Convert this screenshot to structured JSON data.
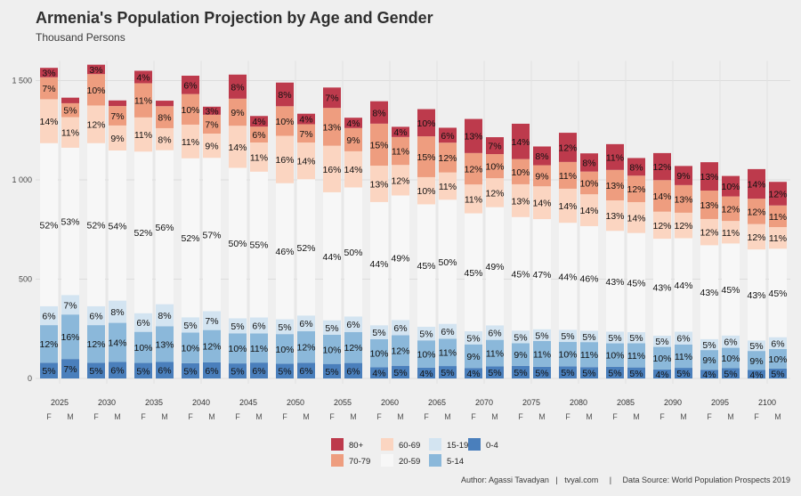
{
  "title": "Armenia's Population Projection by Age and Gender",
  "subtitle": "Thousand Persons",
  "caption": "Author: Agassi Tavadyan   |   tvyal.com     |     Data Source: World Population Prospects 2019",
  "chart_data": {
    "type": "bar",
    "stacked": true,
    "ylim": [
      0,
      1600
    ],
    "yticks": [
      0,
      500,
      1000,
      1500
    ],
    "ytick_labels": [
      "0",
      "500",
      "1 000",
      "1 500"
    ],
    "years": [
      "2025",
      "2030",
      "2035",
      "2040",
      "2045",
      "2050",
      "2055",
      "2060",
      "2065",
      "2070",
      "2075",
      "2080",
      "2085",
      "2090",
      "2095",
      "2100"
    ],
    "genders": [
      "F",
      "M"
    ],
    "groups": [
      "0-4",
      "5-14",
      "15-19",
      "20-59",
      "60-69",
      "70-79",
      "80+"
    ],
    "legend": {
      "position": "bottom",
      "items": [
        {
          "key": "80+",
          "label": "80+"
        },
        {
          "key": "70-79",
          "label": "70-79"
        },
        {
          "key": "60-69",
          "label": "60-69"
        },
        {
          "key": "20-59",
          "label": "20-59"
        },
        {
          "key": "15-19",
          "label": "15-19"
        },
        {
          "key": "5-14",
          "label": "5-14"
        },
        {
          "key": "0-4",
          "label": "0-4"
        }
      ]
    },
    "colors": {
      "0-4": "#4a7fbc",
      "5-14": "#8bb8da",
      "15-19": "#d3e4f1",
      "20-59": "#f7f7f7",
      "60-69": "#fbd5c1",
      "70-79": "#ee9d7f",
      "80+": "#bd3a4c"
    },
    "bars": [
      {
        "year": "2025",
        "gender": "F",
        "total": 1580,
        "pct": [
          5,
          12,
          6,
          52,
          14,
          7,
          3
        ]
      },
      {
        "year": "2025",
        "gender": "M",
        "total": 1400,
        "pct": [
          7,
          16,
          7,
          53,
          11,
          5,
          2
        ]
      },
      {
        "year": "2030",
        "gender": "F",
        "total": 1580,
        "pct": [
          5,
          12,
          6,
          52,
          12,
          10,
          3
        ]
      },
      {
        "year": "2030",
        "gender": "M",
        "total": 1400,
        "pct": [
          6,
          14,
          8,
          54,
          9,
          7,
          2
        ]
      },
      {
        "year": "2035",
        "gender": "F",
        "total": 1565,
        "pct": [
          5,
          10,
          6,
          52,
          11,
          11,
          4
        ]
      },
      {
        "year": "2035",
        "gender": "M",
        "total": 1385,
        "pct": [
          6,
          13,
          8,
          56,
          8,
          8,
          2
        ]
      },
      {
        "year": "2040",
        "gender": "F",
        "total": 1540,
        "pct": [
          5,
          10,
          5,
          52,
          11,
          10,
          6
        ]
      },
      {
        "year": "2040",
        "gender": "M",
        "total": 1355,
        "pct": [
          6,
          12,
          7,
          57,
          9,
          7,
          3
        ]
      },
      {
        "year": "2045",
        "gender": "F",
        "total": 1515,
        "pct": [
          5,
          10,
          5,
          50,
          14,
          9,
          8
        ]
      },
      {
        "year": "2045",
        "gender": "M",
        "total": 1335,
        "pct": [
          6,
          11,
          6,
          55,
          11,
          6,
          4
        ]
      },
      {
        "year": "2050",
        "gender": "F",
        "total": 1490,
        "pct": [
          5,
          10,
          5,
          46,
          16,
          10,
          8
        ]
      },
      {
        "year": "2050",
        "gender": "M",
        "total": 1320,
        "pct": [
          6,
          12,
          6,
          52,
          14,
          7,
          4
        ]
      },
      {
        "year": "2055",
        "gender": "F",
        "total": 1465,
        "pct": [
          5,
          10,
          5,
          44,
          16,
          13,
          7
        ]
      },
      {
        "year": "2055",
        "gender": "M",
        "total": 1300,
        "pct": [
          6,
          12,
          6,
          50,
          14,
          9,
          4
        ]
      },
      {
        "year": "2060",
        "gender": "F",
        "total": 1410,
        "pct": [
          4,
          10,
          5,
          44,
          13,
          15,
          8
        ]
      },
      {
        "year": "2060",
        "gender": "M",
        "total": 1280,
        "pct": [
          5,
          12,
          6,
          49,
          12,
          11,
          4
        ]
      },
      {
        "year": "2065",
        "gender": "F",
        "total": 1370,
        "pct": [
          4,
          10,
          5,
          45,
          10,
          15,
          10
        ]
      },
      {
        "year": "2065",
        "gender": "M",
        "total": 1250,
        "pct": [
          5,
          11,
          6,
          50,
          11,
          12,
          6
        ]
      },
      {
        "year": "2070",
        "gender": "F",
        "total": 1320,
        "pct": [
          4,
          9,
          5,
          45,
          11,
          12,
          13
        ]
      },
      {
        "year": "2070",
        "gender": "M",
        "total": 1215,
        "pct": [
          5,
          11,
          6,
          49,
          12,
          10,
          7
        ]
      },
      {
        "year": "2075",
        "gender": "F",
        "total": 1270,
        "pct": [
          5,
          9,
          5,
          45,
          13,
          10,
          14
        ]
      },
      {
        "year": "2075",
        "gender": "M",
        "total": 1180,
        "pct": [
          5,
          11,
          5,
          47,
          14,
          9,
          8
        ]
      },
      {
        "year": "2080",
        "gender": "F",
        "total": 1225,
        "pct": [
          5,
          10,
          5,
          44,
          14,
          11,
          12
        ]
      },
      {
        "year": "2080",
        "gender": "M",
        "total": 1145,
        "pct": [
          5,
          11,
          5,
          46,
          14,
          10,
          8
        ]
      },
      {
        "year": "2085",
        "gender": "F",
        "total": 1180,
        "pct": [
          5,
          10,
          5,
          43,
          13,
          13,
          11
        ]
      },
      {
        "year": "2085",
        "gender": "M",
        "total": 1110,
        "pct": [
          5,
          11,
          5,
          45,
          14,
          12,
          8
        ]
      },
      {
        "year": "2090",
        "gender": "F",
        "total": 1135,
        "pct": [
          4,
          10,
          5,
          43,
          12,
          14,
          12
        ]
      },
      {
        "year": "2090",
        "gender": "M",
        "total": 1070,
        "pct": [
          5,
          11,
          6,
          44,
          12,
          13,
          9
        ]
      },
      {
        "year": "2095",
        "gender": "F",
        "total": 1100,
        "pct": [
          4,
          9,
          5,
          43,
          12,
          13,
          13
        ]
      },
      {
        "year": "2095",
        "gender": "M",
        "total": 1030,
        "pct": [
          5,
          10,
          6,
          45,
          11,
          12,
          10
        ]
      },
      {
        "year": "2100",
        "gender": "F",
        "total": 1065,
        "pct": [
          4,
          9,
          5,
          43,
          12,
          12,
          14
        ]
      },
      {
        "year": "2100",
        "gender": "M",
        "total": 990,
        "pct": [
          5,
          10,
          6,
          45,
          11,
          11,
          12
        ]
      }
    ]
  }
}
